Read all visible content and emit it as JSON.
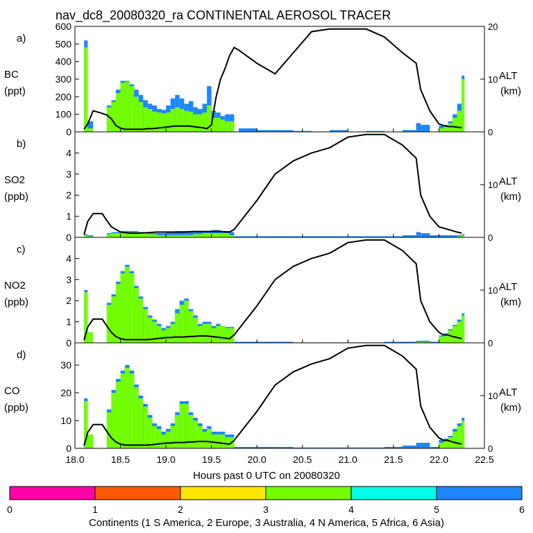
{
  "title": "nav_dc8_20080320_ra CONTINENTAL AEROSOL TRACER",
  "x_axis": {
    "label": "Hours past 0 UTC on 20080320",
    "range": [
      18.0,
      22.5
    ],
    "ticks": [
      "18.0",
      "18.5",
      "19.0",
      "19.5",
      "20.0",
      "20.5",
      "21.0",
      "21.5",
      "22.0",
      "22.5"
    ]
  },
  "alt_axis": {
    "label": "ALT",
    "unit": "(km)",
    "range": [
      0,
      20
    ],
    "ticks": [
      "0",
      "10",
      "20"
    ]
  },
  "colorbar": {
    "label": "Continents (1 S America, 2 Europe, 3 Australia, 4 N America, 5 Africa, 6 Asia)",
    "ticks": [
      "0",
      "1",
      "2",
      "3",
      "4",
      "5",
      "6"
    ],
    "colors": [
      "#ff00a8",
      "#ff5a00",
      "#ffe600",
      "#73ff00",
      "#00ffe6",
      "#1e87ff"
    ]
  },
  "colors": {
    "green": "#73ff00",
    "blue": "#1e87ff",
    "line": "#000000"
  },
  "chart_data": [
    {
      "type": "area",
      "panel": "a)",
      "species": "BC",
      "unit": "(ppt)",
      "ylim": [
        0,
        600
      ],
      "yticks": [
        "0",
        "100",
        "200",
        "300",
        "400",
        "500",
        "600"
      ],
      "alt_ticks": [
        "0",
        "10",
        "20"
      ],
      "t": [
        18.1,
        18.14,
        18.2,
        18.3,
        18.35,
        18.4,
        18.45,
        18.5,
        18.55,
        18.6,
        18.65,
        18.7,
        18.75,
        18.8,
        18.85,
        18.9,
        18.95,
        19.0,
        19.05,
        19.1,
        19.15,
        19.2,
        19.25,
        19.3,
        19.35,
        19.4,
        19.45,
        19.5,
        19.55,
        19.6,
        19.65,
        19.7,
        19.75,
        19.8,
        20.0,
        20.2,
        20.4,
        20.6,
        20.8,
        21.0,
        21.2,
        21.4,
        21.6,
        21.75,
        21.8,
        21.9,
        22.0,
        22.05,
        22.1,
        22.15,
        22.2,
        22.25
      ],
      "green": [
        480,
        20,
        0,
        0,
        140,
        170,
        220,
        280,
        285,
        260,
        200,
        170,
        140,
        130,
        115,
        110,
        105,
        110,
        130,
        140,
        130,
        120,
        115,
        100,
        100,
        110,
        150,
        80,
        80,
        70,
        60,
        60,
        0,
        0,
        0,
        0,
        0,
        0,
        0,
        0,
        0,
        0,
        0,
        0,
        0,
        0,
        20,
        30,
        50,
        80,
        120,
        300
      ],
      "blue": [
        520,
        60,
        0,
        0,
        150,
        180,
        240,
        290,
        290,
        270,
        240,
        210,
        180,
        160,
        150,
        130,
        125,
        150,
        190,
        210,
        190,
        160,
        175,
        140,
        130,
        160,
        260,
        120,
        110,
        90,
        100,
        100,
        0,
        20,
        10,
        10,
        5,
        0,
        10,
        0,
        5,
        0,
        10,
        50,
        40,
        0,
        35,
        40,
        60,
        100,
        160,
        320
      ],
      "alt": [
        0.5,
        1.5,
        4.0,
        3.5,
        3.2,
        2.5,
        1.2,
        0.7,
        0.5,
        0.5,
        0.5,
        0.5,
        0.5,
        0.6,
        0.6,
        0.7,
        0.8,
        0.9,
        1.0,
        1.1,
        1.1,
        1.1,
        1.1,
        1.0,
        0.9,
        0.8,
        0.6,
        1.3,
        6.5,
        10.0,
        12.0,
        14.5,
        16.0,
        15.5,
        13.0,
        11.0,
        15.0,
        19.0,
        19.5,
        19.5,
        19.5,
        18.0,
        15.0,
        13.0,
        8.0,
        4.0,
        1.5,
        1.2,
        1.0,
        1.0,
        0.9,
        0.8
      ]
    },
    {
      "type": "area",
      "panel": "b)",
      "species": "SO2",
      "unit": "(ppb)",
      "ylim": [
        0,
        5
      ],
      "yticks": [
        "0",
        "1",
        "2",
        "3",
        "4"
      ],
      "alt_ticks": [
        "0",
        "10"
      ],
      "t": [
        18.1,
        18.14,
        18.2,
        18.3,
        18.35,
        18.4,
        18.5,
        18.6,
        18.7,
        18.8,
        18.9,
        19.0,
        19.1,
        19.2,
        19.3,
        19.4,
        19.5,
        19.6,
        19.7,
        19.75,
        20.0,
        20.2,
        20.4,
        20.6,
        20.8,
        21.0,
        21.2,
        21.4,
        21.6,
        21.75,
        21.8,
        21.9,
        22.0,
        22.1,
        22.2,
        22.25
      ],
      "green": [
        0.1,
        0.05,
        0,
        0,
        0.15,
        0.2,
        0.25,
        0.25,
        0.2,
        0.15,
        0.1,
        0.1,
        0.1,
        0.1,
        0.15,
        0.2,
        0.2,
        0.2,
        0.1,
        0,
        0,
        0,
        0,
        0,
        0,
        0,
        0,
        0,
        0,
        0,
        0,
        0,
        0,
        0,
        0.05,
        0.1
      ],
      "blue": [
        0.15,
        0.1,
        0,
        0,
        0.2,
        0.25,
        0.3,
        0.3,
        0.25,
        0.2,
        0.2,
        0.25,
        0.3,
        0.3,
        0.3,
        0.3,
        0.35,
        0.3,
        0.25,
        0.05,
        0.05,
        0.05,
        0.05,
        0.05,
        0.05,
        0.05,
        0.05,
        0.05,
        0.1,
        0.25,
        0.2,
        0.1,
        0.1,
        0.1,
        0.1,
        0.15
      ],
      "alt": [
        0.5,
        3.0,
        4.5,
        4.5,
        3.2,
        2.0,
        1.0,
        0.8,
        0.8,
        0.9,
        1.0,
        1.0,
        1.0,
        1.0,
        1.1,
        1.1,
        1.1,
        1.1,
        1.0,
        1.5,
        7.0,
        12.0,
        14.5,
        16.0,
        17.0,
        19.0,
        19.5,
        19.5,
        17.5,
        15.0,
        8.0,
        4.0,
        2.0,
        1.5,
        1.0,
        0.8
      ]
    },
    {
      "type": "area",
      "panel": "c)",
      "species": "NO2",
      "unit": "(ppb)",
      "ylim": [
        0,
        5
      ],
      "yticks": [
        "0",
        "1",
        "2",
        "3",
        "4"
      ],
      "alt_ticks": [
        "0",
        "10"
      ],
      "t": [
        18.1,
        18.14,
        18.2,
        18.3,
        18.35,
        18.4,
        18.45,
        18.5,
        18.55,
        18.6,
        18.65,
        18.7,
        18.75,
        18.8,
        18.85,
        18.9,
        18.95,
        19.0,
        19.05,
        19.1,
        19.15,
        19.2,
        19.25,
        19.3,
        19.35,
        19.4,
        19.45,
        19.5,
        19.55,
        19.6,
        19.65,
        19.7,
        19.75,
        20.0,
        20.2,
        20.4,
        20.6,
        20.8,
        21.0,
        21.2,
        21.4,
        21.6,
        21.75,
        21.8,
        21.9,
        22.0,
        22.05,
        22.1,
        22.15,
        22.2,
        22.25
      ],
      "green": [
        2.4,
        0.5,
        0,
        0,
        1.8,
        2.2,
        2.8,
        3.3,
        3.6,
        3.3,
        2.6,
        2.1,
        1.6,
        1.2,
        1.0,
        0.8,
        0.6,
        0.7,
        0.9,
        1.4,
        1.8,
        2.0,
        1.5,
        1.2,
        0.8,
        0.9,
        0.9,
        0.7,
        0.8,
        0.8,
        0.7,
        0.7,
        0,
        0,
        0,
        0,
        0,
        0,
        0,
        0,
        0,
        0,
        0.05,
        0.05,
        0,
        0.3,
        0.4,
        0.6,
        0.8,
        1.0,
        1.3
      ],
      "blue": [
        2.5,
        0.5,
        0,
        0,
        1.9,
        2.3,
        2.9,
        3.4,
        3.7,
        3.4,
        2.7,
        2.2,
        1.7,
        1.3,
        1.1,
        0.9,
        0.7,
        0.8,
        1.0,
        1.6,
        2.0,
        2.1,
        1.6,
        1.3,
        0.9,
        1.0,
        1.0,
        0.8,
        0.9,
        0.8,
        0.75,
        0.75,
        0.05,
        0.05,
        0.05,
        0.02,
        0.02,
        0.02,
        0.02,
        0.02,
        0.05,
        0.05,
        0.1,
        0.1,
        0.05,
        0.35,
        0.45,
        0.65,
        0.85,
        1.1,
        1.4
      ],
      "alt": [
        0.5,
        3.0,
        4.5,
        4.5,
        3.2,
        2.0,
        1.2,
        0.8,
        0.6,
        0.6,
        0.6,
        0.6,
        0.6,
        0.6,
        0.7,
        0.8,
        0.9,
        1.0,
        1.0,
        1.1,
        1.1,
        1.1,
        1.2,
        1.2,
        1.3,
        1.3,
        1.3,
        1.2,
        1.1,
        1.0,
        0.9,
        0.8,
        1.5,
        7.0,
        12.0,
        14.5,
        16.0,
        17.0,
        19.0,
        19.5,
        19.5,
        17.5,
        15.0,
        8.0,
        4.0,
        2.0,
        1.5,
        1.5,
        1.2,
        1.0,
        0.8
      ]
    },
    {
      "type": "area",
      "panel": "d)",
      "species": "CO",
      "unit": "(ppb)",
      "ylim": [
        0,
        38
      ],
      "yticks": [
        "0",
        "10",
        "20",
        "30"
      ],
      "alt_ticks": [
        "0",
        "10"
      ],
      "t": [
        18.1,
        18.14,
        18.2,
        18.3,
        18.35,
        18.4,
        18.45,
        18.5,
        18.55,
        18.6,
        18.65,
        18.7,
        18.75,
        18.8,
        18.85,
        18.9,
        18.95,
        19.0,
        19.05,
        19.1,
        19.15,
        19.2,
        19.25,
        19.3,
        19.35,
        19.4,
        19.45,
        19.5,
        19.55,
        19.6,
        19.65,
        19.7,
        19.75,
        20.0,
        20.2,
        20.4,
        20.6,
        20.8,
        21.0,
        21.2,
        21.4,
        21.6,
        21.75,
        21.8,
        21.9,
        22.0,
        22.05,
        22.1,
        22.15,
        22.2,
        22.25
      ],
      "green": [
        17,
        5,
        0,
        0,
        13,
        20,
        24,
        27,
        29,
        27,
        22,
        18,
        15,
        11,
        8,
        7,
        5,
        6,
        8,
        12,
        16,
        16,
        12,
        10,
        8,
        6,
        7,
        5,
        5,
        5,
        4,
        4,
        0,
        0,
        0,
        0,
        0,
        0,
        0,
        0,
        0,
        0,
        0,
        0,
        0,
        2,
        3,
        4,
        6,
        8,
        10
      ],
      "blue": [
        18,
        5,
        0,
        0,
        14,
        21,
        25,
        28,
        30,
        28,
        23,
        19,
        16,
        12,
        9,
        8,
        6,
        7,
        9,
        13,
        17,
        17,
        13,
        11,
        9,
        7,
        8,
        6,
        6,
        6,
        5,
        5,
        0.5,
        0.5,
        0.5,
        0.3,
        0.3,
        0.3,
        0.3,
        0.3,
        0.5,
        1,
        2,
        2,
        0.5,
        3,
        3.5,
        4.5,
        7,
        9,
        11
      ],
      "alt": [
        0.5,
        3.0,
        4.5,
        4.5,
        3.2,
        2.0,
        1.2,
        0.8,
        0.6,
        0.6,
        0.6,
        0.6,
        0.6,
        0.6,
        0.7,
        0.8,
        0.9,
        1.0,
        1.0,
        1.1,
        1.1,
        1.1,
        1.2,
        1.2,
        1.3,
        1.3,
        1.3,
        1.2,
        1.1,
        1.0,
        0.9,
        0.8,
        1.5,
        7.0,
        12.0,
        14.5,
        16.0,
        17.0,
        19.0,
        19.5,
        19.5,
        17.5,
        15.0,
        8.0,
        4.0,
        2.0,
        1.5,
        1.5,
        1.2,
        1.0,
        0.8
      ]
    }
  ]
}
